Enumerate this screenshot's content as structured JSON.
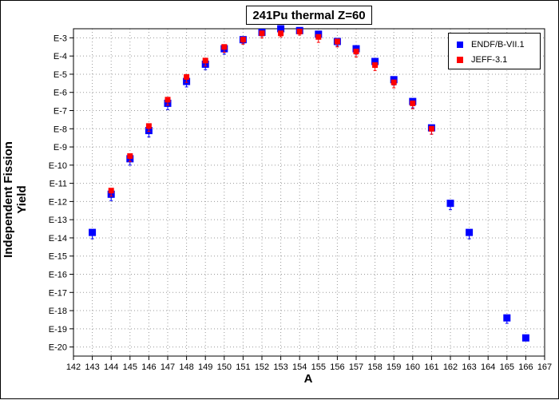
{
  "chart_data": {
    "type": "scatter",
    "title": "241Pu thermal Z=60",
    "xlabel": "A",
    "ylabel": "Independent Fission Yield",
    "xlim": [
      142,
      167
    ],
    "ylim_log10": [
      -20.5,
      -2.5
    ],
    "y_scale": "log",
    "xticks": [
      142,
      143,
      144,
      145,
      146,
      147,
      148,
      149,
      150,
      151,
      152,
      153,
      154,
      155,
      156,
      157,
      158,
      159,
      160,
      161,
      162,
      163,
      164,
      165,
      166,
      167
    ],
    "yticks": [
      {
        "exp": -3,
        "label": "E-3"
      },
      {
        "exp": -4,
        "label": "E-4"
      },
      {
        "exp": -5,
        "label": "E-5"
      },
      {
        "exp": -6,
        "label": "E-6"
      },
      {
        "exp": -7,
        "label": "E-7"
      },
      {
        "exp": -8,
        "label": "E-8"
      },
      {
        "exp": -9,
        "label": "E-9"
      },
      {
        "exp": -10,
        "label": "E-10"
      },
      {
        "exp": -11,
        "label": "E-11"
      },
      {
        "exp": -12,
        "label": "E-12"
      },
      {
        "exp": -13,
        "label": "E-13"
      },
      {
        "exp": -14,
        "label": "E-14"
      },
      {
        "exp": -15,
        "label": "E-15"
      },
      {
        "exp": -16,
        "label": "E-16"
      },
      {
        "exp": -17,
        "label": "E-17"
      },
      {
        "exp": -18,
        "label": "E-18"
      },
      {
        "exp": -19,
        "label": "E-19"
      },
      {
        "exp": -20,
        "label": "E-20"
      }
    ],
    "grid": true,
    "legend_position": "top-right",
    "series": [
      {
        "name": "ENDF/B-VII.1",
        "color": "#0000ff",
        "points": [
          {
            "x": 143,
            "log10y": -13.7,
            "err": 0.35
          },
          {
            "x": 144,
            "log10y": -11.6,
            "err": 0.35
          },
          {
            "x": 145,
            "log10y": -9.65,
            "err": 0.35
          },
          {
            "x": 146,
            "log10y": -8.1,
            "err": 0.35
          },
          {
            "x": 147,
            "log10y": -6.6,
            "err": 0.35
          },
          {
            "x": 148,
            "log10y": -5.4,
            "err": 0.3
          },
          {
            "x": 149,
            "log10y": -4.45,
            "err": 0.3
          },
          {
            "x": 150,
            "log10y": -3.6,
            "err": 0.3
          },
          {
            "x": 151,
            "log10y": -3.1,
            "err": 0.2
          },
          {
            "x": 152,
            "log10y": -2.7,
            "err": 0.2
          },
          {
            "x": 153,
            "log10y": -2.5,
            "err": 0.15
          },
          {
            "x": 154,
            "log10y": -2.6,
            "err": 0.15
          },
          {
            "x": 155,
            "log10y": -2.8,
            "err": 0.2
          },
          {
            "x": 156,
            "log10y": -3.2,
            "err": 0.25
          },
          {
            "x": 157,
            "log10y": -3.6,
            "err": 0.3
          },
          {
            "x": 158,
            "log10y": -4.3,
            "err": 0.3
          },
          {
            "x": 159,
            "log10y": -5.3,
            "err": 0.3
          },
          {
            "x": 160,
            "log10y": -6.5,
            "err": 0.35
          },
          {
            "x": 161,
            "log10y": -7.95,
            "err": 0.35
          },
          {
            "x": 162,
            "log10y": -12.1,
            "err": 0.35
          },
          {
            "x": 163,
            "log10y": -13.7,
            "err": 0.35
          },
          {
            "x": 165,
            "log10y": -18.4,
            "err": 0.3
          },
          {
            "x": 166,
            "log10y": -19.5,
            "err": 0.15
          }
        ]
      },
      {
        "name": "JEFF-3.1",
        "color": "#ff0000",
        "points": [
          {
            "x": 144,
            "log10y": -11.4,
            "err": 0.3
          },
          {
            "x": 145,
            "log10y": -9.5,
            "err": 0.3
          },
          {
            "x": 146,
            "log10y": -7.85,
            "err": 0.3
          },
          {
            "x": 147,
            "log10y": -6.4,
            "err": 0.3
          },
          {
            "x": 148,
            "log10y": -5.15,
            "err": 0.3
          },
          {
            "x": 149,
            "log10y": -4.25,
            "err": 0.3
          },
          {
            "x": 150,
            "log10y": -3.5,
            "err": 0.3
          },
          {
            "x": 151,
            "log10y": -3.1,
            "err": 0.25
          },
          {
            "x": 152,
            "log10y": -2.75,
            "err": 0.25
          },
          {
            "x": 153,
            "log10y": -2.75,
            "err": 0.2
          },
          {
            "x": 154,
            "log10y": -2.65,
            "err": 0.2
          },
          {
            "x": 155,
            "log10y": -2.95,
            "err": 0.3
          },
          {
            "x": 156,
            "log10y": -3.2,
            "err": 0.3
          },
          {
            "x": 157,
            "log10y": -3.75,
            "err": 0.3
          },
          {
            "x": 158,
            "log10y": -4.5,
            "err": 0.3
          },
          {
            "x": 159,
            "log10y": -5.45,
            "err": 0.3
          },
          {
            "x": 160,
            "log10y": -6.6,
            "err": 0.3
          },
          {
            "x": 161,
            "log10y": -8.0,
            "err": 0.3
          }
        ]
      }
    ]
  }
}
